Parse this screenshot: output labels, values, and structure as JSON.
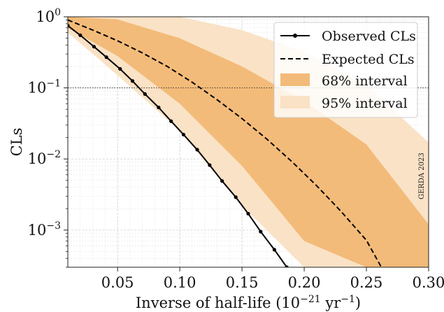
{
  "chart_data": {
    "type": "line",
    "credit": "GERDA 2023",
    "x_axis": {
      "label": "Inverse of half-life (10",
      "label_exp": "−21",
      "label_unit": " yr",
      "label_unit_exp": "−1",
      "label_close": ")",
      "range": [
        0.01,
        0.3
      ],
      "ticks": [
        0.05,
        0.1,
        0.15,
        0.2,
        0.25,
        0.3
      ],
      "tick_labels": [
        "0.05",
        "0.10",
        "0.15",
        "0.20",
        "0.25",
        "0.30"
      ]
    },
    "y_axis": {
      "label": "CLs",
      "scale": "log",
      "range": [
        0.0003,
        1
      ],
      "ticks": [
        {
          "value": 1,
          "base": "10",
          "exp": "0"
        },
        {
          "value": 0.1,
          "base": "10",
          "exp": "−1"
        },
        {
          "value": 0.01,
          "base": "10",
          "exp": "−2"
        },
        {
          "value": 0.001,
          "base": "10",
          "exp": "−3"
        }
      ]
    },
    "reference_line": {
      "y": 0.1,
      "style": "dotted"
    },
    "grid": true,
    "legend_position": "top-right",
    "series": [
      {
        "name": "Observed CLs",
        "kind": "line-marker",
        "color": "#000000",
        "x": [
          0.01,
          0.02,
          0.031,
          0.041,
          0.052,
          0.062,
          0.072,
          0.083,
          0.093,
          0.103,
          0.114,
          0.124,
          0.134,
          0.145,
          0.155,
          0.165,
          0.176,
          0.186
        ],
        "y": [
          0.75,
          0.55,
          0.38,
          0.27,
          0.185,
          0.125,
          0.082,
          0.053,
          0.034,
          0.022,
          0.0135,
          0.0082,
          0.0049,
          0.0029,
          0.0017,
          0.00095,
          0.00053,
          0.0003
        ]
      },
      {
        "name": "Expected CLs",
        "kind": "dashed-line",
        "color": "#000000",
        "x": [
          0.01,
          0.03,
          0.05,
          0.07,
          0.09,
          0.11,
          0.13,
          0.15,
          0.17,
          0.19,
          0.21,
          0.23,
          0.25,
          0.262
        ],
        "y": [
          0.9,
          0.65,
          0.46,
          0.31,
          0.2,
          0.12,
          0.068,
          0.037,
          0.019,
          0.0092,
          0.0042,
          0.0018,
          0.00072,
          0.0003
        ]
      },
      {
        "name": "68% interval",
        "kind": "band",
        "color": "#f3bb79",
        "x": [
          0.01,
          0.05,
          0.1,
          0.15,
          0.2,
          0.25,
          0.3
        ],
        "upper": [
          1.0,
          0.92,
          0.5,
          0.2,
          0.065,
          0.016,
          0.0012
        ],
        "lower": [
          0.7,
          0.28,
          0.06,
          0.008,
          0.0007,
          0.0003,
          0.0003
        ]
      },
      {
        "name": "95% interval",
        "kind": "band",
        "color": "#fae2c6",
        "x": [
          0.01,
          0.05,
          0.1,
          0.15,
          0.2,
          0.25,
          0.3
        ],
        "upper": [
          1.0,
          1.0,
          1.0,
          0.65,
          0.32,
          0.11,
          0.017
        ],
        "lower": [
          0.6,
          0.15,
          0.025,
          0.0022,
          0.0003,
          0.0003,
          0.0003
        ]
      }
    ]
  }
}
